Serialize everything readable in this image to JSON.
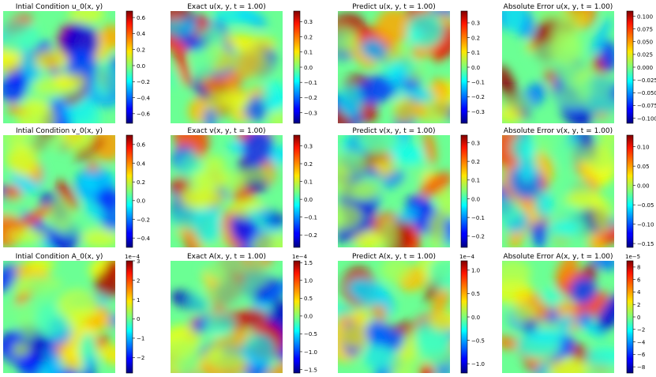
{
  "figure": {
    "rows": [
      {
        "panels": [
          {
            "title": "Intial Condition u_0(x, y)",
            "colorbar": {
              "ticks": [
                0.6,
                0.4,
                0.2,
                0.0,
                -0.2,
                -0.4,
                -0.6
              ],
              "tick_labels": [
                "0.6",
                "0.4",
                "0.2",
                "0.0",
                "−0.2",
                "−0.4",
                "−0.6"
              ],
              "range": [
                -0.72,
                0.68
              ],
              "scale_note": ""
            }
          },
          {
            "title": "Exact u(x, y, t = 1.00)",
            "colorbar": {
              "ticks": [
                0.3,
                0.2,
                0.1,
                0.0,
                -0.1,
                -0.2,
                -0.3
              ],
              "tick_labels": [
                "0.3",
                "0.2",
                "0.1",
                "0.0",
                "−0.1",
                "−0.2",
                "−0.3"
              ],
              "range": [
                -0.37,
                0.37
              ],
              "scale_note": ""
            }
          },
          {
            "title": "Predict u(x, y, t = 1.00)",
            "colorbar": {
              "ticks": [
                0.3,
                0.2,
                0.1,
                0.0,
                -0.1,
                -0.2,
                -0.3
              ],
              "tick_labels": [
                "0.3",
                "0.2",
                "0.1",
                "0.0",
                "−0.1",
                "−0.2",
                "−0.3"
              ],
              "range": [
                -0.38,
                0.38
              ],
              "scale_note": ""
            }
          },
          {
            "title": "Absolute Error u(x, y, t = 1.00)",
            "colorbar": {
              "ticks": [
                0.1,
                0.075,
                0.05,
                0.025,
                0.0,
                -0.025,
                -0.05,
                -0.075,
                -0.1
              ],
              "tick_labels": [
                "0.100",
                "0.075",
                "0.050",
                "0.025",
                "0.000",
                "−0.025",
                "−0.050",
                "−0.075",
                "−0.100"
              ],
              "range": [
                -0.11,
                0.11
              ],
              "scale_note": ""
            }
          }
        ]
      },
      {
        "panels": [
          {
            "title": "Intial Condition v_0(x, y)",
            "colorbar": {
              "ticks": [
                0.6,
                0.4,
                0.2,
                0.0,
                -0.2,
                -0.4
              ],
              "tick_labels": [
                "0.6",
                "0.4",
                "0.2",
                "0.0",
                "−0.2",
                "−0.4"
              ],
              "range": [
                -0.5,
                0.7
              ],
              "scale_note": ""
            }
          },
          {
            "title": "Exact v(x, y, t = 1.00)",
            "colorbar": {
              "ticks": [
                0.3,
                0.2,
                0.1,
                0.0,
                -0.1,
                -0.2
              ],
              "tick_labels": [
                "0.3",
                "0.2",
                "0.1",
                "0.0",
                "−0.1",
                "−0.2"
              ],
              "range": [
                -0.27,
                0.36
              ],
              "scale_note": ""
            }
          },
          {
            "title": "Predict v(x, y, t = 1.00)",
            "colorbar": {
              "ticks": [
                0.3,
                0.2,
                0.1,
                0.0,
                -0.1,
                -0.2
              ],
              "tick_labels": [
                "0.3",
                "0.2",
                "0.1",
                "0.0",
                "−0.1",
                "−0.2"
              ],
              "range": [
                -0.26,
                0.34
              ],
              "scale_note": ""
            }
          },
          {
            "title": "Absolute Error v(x, y, t = 1.00)",
            "colorbar": {
              "ticks": [
                0.1,
                0.05,
                0.0,
                -0.05,
                -0.1,
                -0.15
              ],
              "tick_labels": [
                "0.10",
                "0.05",
                "0.00",
                "−0.05",
                "−0.10",
                "−0.15"
              ],
              "range": [
                -0.16,
                0.13
              ],
              "scale_note": ""
            }
          }
        ]
      },
      {
        "panels": [
          {
            "title": "Intial Condition A_0(x, y)",
            "colorbar": {
              "ticks": [
                3,
                2,
                1,
                0,
                -1,
                -2
              ],
              "tick_labels": [
                "3",
                "2",
                "1",
                "0",
                "−1",
                "−2"
              ],
              "range": [
                -2.8,
                3.0
              ],
              "scale_note": "1e−4"
            }
          },
          {
            "title": "Exact A(x, y, t = 1.00)",
            "colorbar": {
              "ticks": [
                1.5,
                1.0,
                0.5,
                0.0,
                -0.5,
                -1.0,
                -1.5
              ],
              "tick_labels": [
                "1.5",
                "1.0",
                "0.5",
                "0.0",
                "−0.5",
                "−1.0",
                "−1.5"
              ],
              "range": [
                -1.6,
                1.55
              ],
              "scale_note": "1e−4"
            }
          },
          {
            "title": "Predict A(x, y, t = 1.00)",
            "colorbar": {
              "ticks": [
                1.0,
                0.5,
                0.0,
                -0.5,
                -1.0
              ],
              "tick_labels": [
                "1.0",
                "0.5",
                "0.0",
                "−0.5",
                "−1.0"
              ],
              "range": [
                -1.2,
                1.2
              ],
              "scale_note": "1e−4"
            }
          },
          {
            "title": "Absolute Error A(x, y, t = 1.00)",
            "colorbar": {
              "ticks": [
                8,
                6,
                4,
                2,
                0,
                -2,
                -4,
                -6,
                -8
              ],
              "tick_labels": [
                "8",
                "6",
                "4",
                "2",
                "0",
                "−2",
                "−4",
                "−6",
                "−8"
              ],
              "range": [
                -9,
                9
              ],
              "scale_note": "1e−5"
            }
          }
        ]
      }
    ]
  },
  "chart_data": {
    "type": "heatmap",
    "colormap": "jet",
    "grid": false,
    "legend": "colorbar-right",
    "panels": [
      {
        "title": "Intial Condition u_0(x, y)",
        "value_range": [
          -0.72,
          0.68
        ],
        "ticks": [
          0.6,
          0.4,
          0.2,
          0.0,
          -0.2,
          -0.4,
          -0.6
        ]
      },
      {
        "title": "Exact u(x, y, t = 1.00)",
        "value_range": [
          -0.37,
          0.37
        ],
        "ticks": [
          0.3,
          0.2,
          0.1,
          0.0,
          -0.1,
          -0.2,
          -0.3
        ]
      },
      {
        "title": "Predict u(x, y, t = 1.00)",
        "value_range": [
          -0.38,
          0.38
        ],
        "ticks": [
          0.3,
          0.2,
          0.1,
          0.0,
          -0.1,
          -0.2,
          -0.3
        ]
      },
      {
        "title": "Absolute Error u(x, y, t = 1.00)",
        "value_range": [
          -0.11,
          0.11
        ],
        "ticks": [
          0.1,
          0.075,
          0.05,
          0.025,
          0.0,
          -0.025,
          -0.05,
          -0.075,
          -0.1
        ]
      },
      {
        "title": "Intial Condition v_0(x, y)",
        "value_range": [
          -0.5,
          0.7
        ],
        "ticks": [
          0.6,
          0.4,
          0.2,
          0.0,
          -0.2,
          -0.4
        ]
      },
      {
        "title": "Exact v(x, y, t = 1.00)",
        "value_range": [
          -0.27,
          0.36
        ],
        "ticks": [
          0.3,
          0.2,
          0.1,
          0.0,
          -0.1,
          -0.2
        ]
      },
      {
        "title": "Predict v(x, y, t = 1.00)",
        "value_range": [
          -0.26,
          0.34
        ],
        "ticks": [
          0.3,
          0.2,
          0.1,
          0.0,
          -0.1,
          -0.2
        ]
      },
      {
        "title": "Absolute Error v(x, y, t = 1.00)",
        "value_range": [
          -0.16,
          0.13
        ],
        "ticks": [
          0.1,
          0.05,
          0.0,
          -0.05,
          -0.1,
          -0.15
        ]
      },
      {
        "title": "Intial Condition A_0(x, y)",
        "value_range": [
          -2.8,
          3.0
        ],
        "scale": "1e-4",
        "ticks": [
          3,
          2,
          1,
          0,
          -1,
          -2
        ]
      },
      {
        "title": "Exact A(x, y, t = 1.00)",
        "value_range": [
          -1.6,
          1.55
        ],
        "scale": "1e-4",
        "ticks": [
          1.5,
          1.0,
          0.5,
          0.0,
          -0.5,
          -1.0,
          -1.5
        ]
      },
      {
        "title": "Predict A(x, y, t = 1.00)",
        "value_range": [
          -1.2,
          1.2
        ],
        "scale": "1e-4",
        "ticks": [
          1.0,
          0.5,
          0.0,
          -0.5,
          -1.0
        ]
      },
      {
        "title": "Absolute Error A(x, y, t = 1.00)",
        "value_range": [
          -9,
          9
        ],
        "scale": "1e-5",
        "ticks": [
          8,
          6,
          4,
          2,
          0,
          -2,
          -4,
          -6,
          -8
        ]
      }
    ]
  }
}
